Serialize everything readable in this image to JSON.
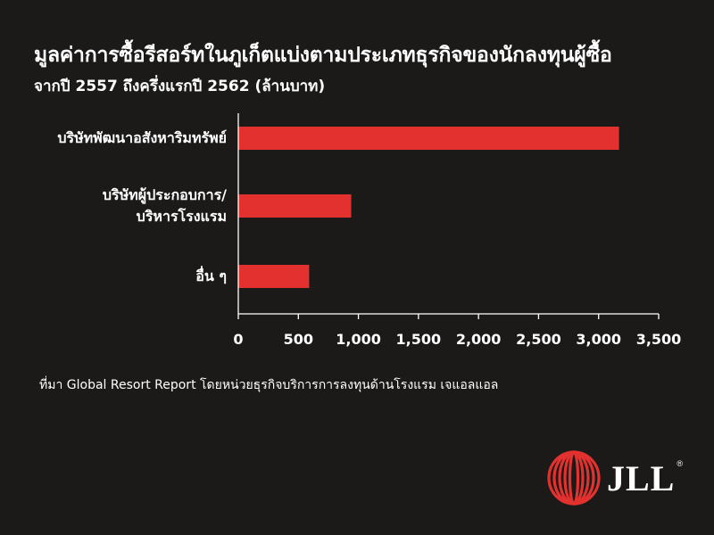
{
  "chart_data": {
    "type": "bar",
    "orientation": "horizontal",
    "title": "มูลค่าการซื้อรีสอร์ทในภูเก็ตแบ่งตามประเภทธุรกิจของนักลงทุนผู้ซื้อ",
    "subtitle": "จากปี 2557 ถึงครึ่งแรกปี 2562 (ล้านบาท)",
    "categories": [
      [
        "บริษัทพัฒนาอสังหาริมทรัพย์"
      ],
      [
        "บริษัทผู้ประกอบการ/",
        "บริหารโรงแรม"
      ],
      [
        "อื่น ๆ"
      ]
    ],
    "values": [
      3170,
      940,
      590
    ],
    "xlim": [
      0,
      3500
    ],
    "xticks": [
      "0",
      "500",
      "1,000",
      "1,500",
      "2,000",
      "2,500",
      "3,000",
      "3,500"
    ],
    "bar_color": "#e2312e",
    "grid": false,
    "legend": "none"
  },
  "source": "ที่มา Global Resort Report โดยหน่วยธุรกิจบริการการลงทุนด้านโรงแรม เจแอลแอล",
  "logo": {
    "text": "JLL",
    "registered": "®",
    "color": "#e2312e"
  }
}
